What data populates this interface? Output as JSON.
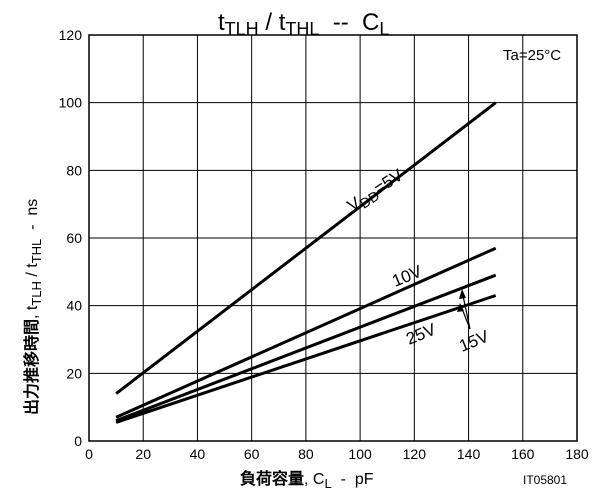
{
  "chart_data": {
    "type": "line",
    "title": {
      "main": "t",
      "sub1": "TLH",
      "mid": " / t",
      "sub2": "THL",
      "tail": "  --  C",
      "sub3": "L"
    },
    "xlabel": {
      "bold": "負荷容量",
      "rest": ", C",
      "sub": "L",
      "unit": "  -  pF"
    },
    "ylabel": {
      "bold": "出力推移時間",
      "rest": ", t",
      "sub1": "TLH",
      "mid": " / t",
      "sub2": "THL",
      "unit": "  -  ns"
    },
    "xlim": [
      0,
      180
    ],
    "ylim": [
      0,
      120
    ],
    "xticks": [
      0,
      20,
      40,
      60,
      80,
      100,
      120,
      140,
      160,
      180
    ],
    "yticks": [
      0,
      20,
      40,
      60,
      80,
      100,
      120
    ],
    "grid": true,
    "condition": "Ta=25°C",
    "figure_code": "IT05801",
    "series": [
      {
        "name": "V",
        "name_sub": "DD",
        "name_tail": "=5V",
        "x": [
          10,
          150
        ],
        "y": [
          14,
          100
        ]
      },
      {
        "name": "10V",
        "x": [
          10,
          150
        ],
        "y": [
          7,
          57
        ]
      },
      {
        "name": "15V",
        "x": [
          10,
          150
        ],
        "y": [
          6,
          49
        ]
      },
      {
        "name": "25V",
        "x": [
          10,
          150
        ],
        "y": [
          5.5,
          43
        ]
      }
    ]
  }
}
